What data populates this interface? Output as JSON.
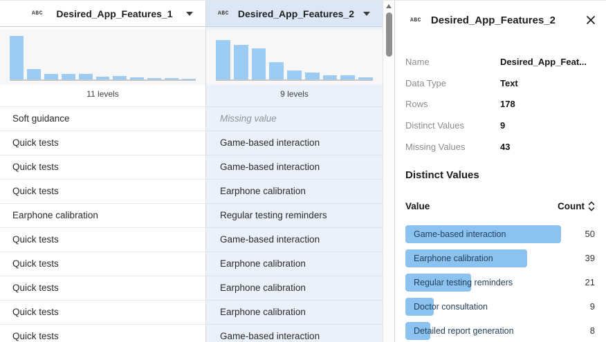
{
  "columns": [
    {
      "name": "Desired_App_Features_1",
      "type_icon": "ABC",
      "levels_label": "11 levels",
      "histogram": [
        1.0,
        0.24,
        0.12,
        0.12,
        0.12,
        0.07,
        0.08,
        0.05,
        0.03,
        0.03,
        0.02
      ],
      "selected": false
    },
    {
      "name": "Desired_App_Features_2",
      "type_icon": "ABC",
      "levels_label": "9 levels",
      "histogram": [
        0.9,
        0.79,
        0.71,
        0.4,
        0.21,
        0.16,
        0.1,
        0.09,
        0.05
      ],
      "selected": true
    }
  ],
  "rows": [
    {
      "col1": "Soft guidance",
      "col2": "Missing value",
      "col2_missing": true
    },
    {
      "col1": "Quick tests",
      "col2": "Game-based interaction",
      "col2_missing": false
    },
    {
      "col1": "Quick tests",
      "col2": "Game-based interaction",
      "col2_missing": false
    },
    {
      "col1": "Quick tests",
      "col2": "Earphone calibration",
      "col2_missing": false
    },
    {
      "col1": "Earphone calibration",
      "col2": "Regular testing reminders",
      "col2_missing": false
    },
    {
      "col1": "Quick tests",
      "col2": "Game-based interaction",
      "col2_missing": false
    },
    {
      "col1": "Quick tests",
      "col2": "Earphone calibration",
      "col2_missing": false
    },
    {
      "col1": "Quick tests",
      "col2": "Earphone calibration",
      "col2_missing": false
    },
    {
      "col1": "Quick tests",
      "col2": "Earphone calibration",
      "col2_missing": false
    },
    {
      "col1": "Quick tests",
      "col2": "Game-based interaction",
      "col2_missing": false
    }
  ],
  "detail_panel": {
    "title": "Desired_App_Features_2",
    "type_icon": "ABC",
    "fields": [
      {
        "label": "Name",
        "value": "Desired_App_Feat..."
      },
      {
        "label": "Data Type",
        "value": "Text"
      },
      {
        "label": "Rows",
        "value": "178"
      },
      {
        "label": "Distinct Values",
        "value": "9"
      },
      {
        "label": "Missing Values",
        "value": "43"
      }
    ],
    "distinct_values": {
      "heading": "Distinct Values",
      "col_value": "Value",
      "col_count": "Count",
      "max_count": 50,
      "items": [
        {
          "value": "Game-based interaction",
          "count": 50
        },
        {
          "value": "Earphone calibration",
          "count": 39
        },
        {
          "value": "Regular testing reminders",
          "count": 21
        },
        {
          "value": "Doctor consultation",
          "count": 9
        },
        {
          "value": "Detailed report generation",
          "count": 8
        }
      ]
    }
  },
  "icons": {
    "column_menu": "chevron-down",
    "close": "x",
    "sort": "up-down-chevrons",
    "text_type": "ABC"
  },
  "colors": {
    "selected_header_bg": "#dbe7f5",
    "selected_cell_bg": "#eaf1fa",
    "hist_bg": "#f7f7f7",
    "hist_bar": "#9ccbf4",
    "dv_bar": "#8bc2ef",
    "border_main": "#d9d9d9"
  }
}
